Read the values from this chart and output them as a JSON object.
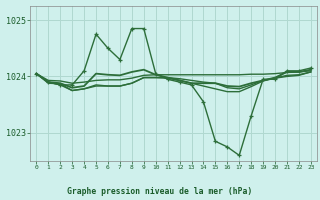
{
  "background_color": "#cff0ec",
  "grid_color": "#b0d8d0",
  "line_color": "#2d6e3a",
  "ylabel_ticks": [
    1023,
    1024,
    1025
  ],
  "xlabel_ticks": [
    0,
    1,
    2,
    3,
    4,
    5,
    6,
    7,
    8,
    9,
    10,
    11,
    12,
    13,
    14,
    15,
    16,
    17,
    18,
    19,
    20,
    21,
    22,
    23
  ],
  "xlabel": "Graphe pression niveau de la mer (hPa)",
  "series": [
    [
      1024.05,
      1023.9,
      1023.85,
      1023.85,
      1024.1,
      1024.75,
      1024.5,
      1024.3,
      1024.85,
      1024.85,
      1024.05,
      1023.95,
      1023.9,
      1023.85,
      1023.55,
      1022.85,
      1022.75,
      1022.6,
      1023.3,
      1023.95,
      1023.95,
      1024.1,
      1024.1,
      1024.15
    ],
    [
      1024.05,
      1023.93,
      1023.92,
      1023.88,
      1023.9,
      1023.93,
      1023.94,
      1023.94,
      1023.97,
      1024.02,
      1024.03,
      1024.03,
      1024.03,
      1024.03,
      1024.03,
      1024.03,
      1024.03,
      1024.03,
      1024.04,
      1024.04,
      1024.05,
      1024.07,
      1024.08,
      1024.1
    ],
    [
      1024.05,
      1023.88,
      1023.87,
      1023.75,
      1023.78,
      1023.85,
      1023.83,
      1023.83,
      1023.88,
      1023.98,
      1023.98,
      1023.98,
      1023.96,
      1023.93,
      1023.9,
      1023.88,
      1023.8,
      1023.78,
      1023.85,
      1023.93,
      1023.97,
      1024.0,
      1024.02,
      1024.08
    ],
    [
      1024.05,
      1023.9,
      1023.88,
      1023.8,
      1023.83,
      1024.05,
      1024.03,
      1024.02,
      1024.08,
      1024.12,
      1024.03,
      1023.98,
      1023.93,
      1023.88,
      1023.88,
      1023.88,
      1023.83,
      1023.82,
      1023.88,
      1023.93,
      1023.98,
      1024.08,
      1024.08,
      1024.12
    ],
    [
      1024.05,
      1023.9,
      1023.85,
      1023.75,
      1023.78,
      1023.83,
      1023.83,
      1023.83,
      1023.88,
      1023.98,
      1023.98,
      1023.97,
      1023.93,
      1023.88,
      1023.83,
      1023.78,
      1023.73,
      1023.73,
      1023.82,
      1023.92,
      1023.97,
      1024.02,
      1024.03,
      1024.08
    ]
  ],
  "show_markers": [
    true,
    false,
    false,
    false,
    false
  ],
  "xlim": [
    -0.5,
    23.5
  ],
  "ylim": [
    1022.5,
    1025.25
  ],
  "linewidths": [
    1.0,
    1.0,
    1.0,
    1.3,
    1.0
  ]
}
